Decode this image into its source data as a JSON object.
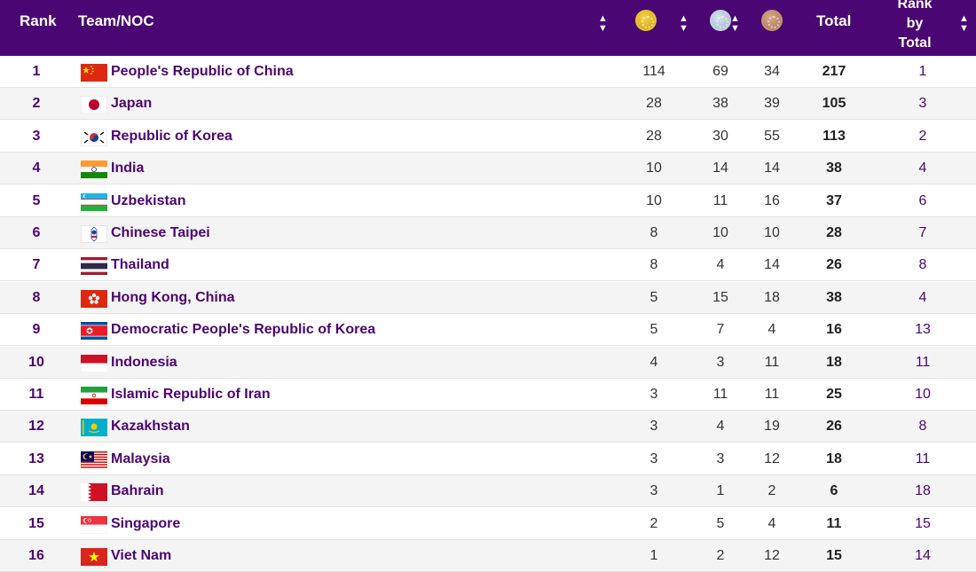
{
  "header": {
    "rank": "Rank",
    "team": "Team/NOC",
    "total": "Total",
    "rank_by_total_line1": "Rank",
    "rank_by_total_line2": "by",
    "rank_by_total_line3": "Total",
    "sort_icon": "sort-icon",
    "medal_icons": [
      "gold-medal-icon",
      "silver-medal-icon",
      "bronze-medal-icon"
    ]
  },
  "colors": {
    "header_bg": "#4a0673",
    "accent_text": "#4a0673",
    "gold": "#e7c22a",
    "silver": "#c5d3df",
    "bronze": "#c79474"
  },
  "rows": [
    {
      "rank": "1",
      "flag": "flag-china-icon",
      "name": "People's Republic of China",
      "gold": "114",
      "silver": "69",
      "bronze": "34",
      "total": "217",
      "rank_by_total": "1"
    },
    {
      "rank": "2",
      "flag": "flag-japan-icon",
      "name": "Japan",
      "gold": "28",
      "silver": "38",
      "bronze": "39",
      "total": "105",
      "rank_by_total": "3"
    },
    {
      "rank": "3",
      "flag": "flag-korea-icon",
      "name": "Republic of Korea",
      "gold": "28",
      "silver": "30",
      "bronze": "55",
      "total": "113",
      "rank_by_total": "2"
    },
    {
      "rank": "4",
      "flag": "flag-india-icon",
      "name": "India",
      "gold": "10",
      "silver": "14",
      "bronze": "14",
      "total": "38",
      "rank_by_total": "4"
    },
    {
      "rank": "5",
      "flag": "flag-uzbekistan-icon",
      "name": "Uzbekistan",
      "gold": "10",
      "silver": "11",
      "bronze": "16",
      "total": "37",
      "rank_by_total": "6"
    },
    {
      "rank": "6",
      "flag": "flag-chinese-taipei-icon",
      "name": "Chinese Taipei",
      "gold": "8",
      "silver": "10",
      "bronze": "10",
      "total": "28",
      "rank_by_total": "7"
    },
    {
      "rank": "7",
      "flag": "flag-thailand-icon",
      "name": "Thailand",
      "gold": "8",
      "silver": "4",
      "bronze": "14",
      "total": "26",
      "rank_by_total": "8"
    },
    {
      "rank": "8",
      "flag": "flag-hong-kong-icon",
      "name": "Hong Kong, China",
      "gold": "5",
      "silver": "15",
      "bronze": "18",
      "total": "38",
      "rank_by_total": "4"
    },
    {
      "rank": "9",
      "flag": "flag-dpr-korea-icon",
      "name": "Democratic People's Republic of Korea",
      "gold": "5",
      "silver": "7",
      "bronze": "4",
      "total": "16",
      "rank_by_total": "13"
    },
    {
      "rank": "10",
      "flag": "flag-indonesia-icon",
      "name": "Indonesia",
      "gold": "4",
      "silver": "3",
      "bronze": "11",
      "total": "18",
      "rank_by_total": "11"
    },
    {
      "rank": "11",
      "flag": "flag-iran-icon",
      "name": "Islamic Republic of Iran",
      "gold": "3",
      "silver": "11",
      "bronze": "11",
      "total": "25",
      "rank_by_total": "10"
    },
    {
      "rank": "12",
      "flag": "flag-kazakhstan-icon",
      "name": "Kazakhstan",
      "gold": "3",
      "silver": "4",
      "bronze": "19",
      "total": "26",
      "rank_by_total": "8"
    },
    {
      "rank": "13",
      "flag": "flag-malaysia-icon",
      "name": "Malaysia",
      "gold": "3",
      "silver": "3",
      "bronze": "12",
      "total": "18",
      "rank_by_total": "11"
    },
    {
      "rank": "14",
      "flag": "flag-bahrain-icon",
      "name": "Bahrain",
      "gold": "3",
      "silver": "1",
      "bronze": "2",
      "total": "6",
      "rank_by_total": "18"
    },
    {
      "rank": "15",
      "flag": "flag-singapore-icon",
      "name": "Singapore",
      "gold": "2",
      "silver": "5",
      "bronze": "4",
      "total": "11",
      "rank_by_total": "15"
    },
    {
      "rank": "16",
      "flag": "flag-viet-nam-icon",
      "name": "Viet Nam",
      "gold": "1",
      "silver": "2",
      "bronze": "12",
      "total": "15",
      "rank_by_total": "14"
    }
  ]
}
